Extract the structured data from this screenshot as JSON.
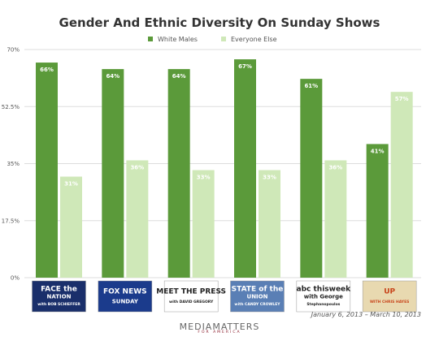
{
  "chart_data": {
    "type": "bar",
    "title": "Gender And Ethnic Diversity On Sunday Shows",
    "categories": [
      "Face the Nation",
      "Fox News Sunday",
      "Meet the Press",
      "State of the Union",
      "This Week",
      "Up with Chris Hayes"
    ],
    "series": [
      {
        "name": "White Males",
        "values": [
          66,
          64,
          64,
          67,
          61,
          41
        ],
        "labels": [
          "66%",
          "64%",
          "64%",
          "67%",
          "61%",
          "41%"
        ],
        "color": "#5b9a3a"
      },
      {
        "name": "Everyone Else",
        "values": [
          31,
          36,
          33,
          33,
          36,
          57
        ],
        "labels": [
          "31%",
          "36%",
          "33%",
          "33%",
          "36%",
          "57%"
        ],
        "color": "#cfe8b8"
      }
    ],
    "ylim": [
      0,
      70
    ],
    "yticks": [
      {
        "value": 0,
        "label": "0%"
      },
      {
        "value": 17.5,
        "label": "17.5%"
      },
      {
        "value": 35,
        "label": "35%"
      },
      {
        "value": 52.5,
        "label": "52.5%"
      },
      {
        "value": 70,
        "label": "70%"
      }
    ],
    "grid": true,
    "legend_position": "top-center"
  },
  "logos": [
    {
      "lines": [
        "FACE the",
        "NATION",
        "with BOB SCHIEFFER"
      ],
      "bg": "#1a2f6b",
      "fg": "#ffffff"
    },
    {
      "lines": [
        "FOX NEWS",
        "SUNDAY"
      ],
      "bg": "#1b3b8c",
      "fg": "#ffffff"
    },
    {
      "lines": [
        "MEET THE PRESS",
        "with DAVID GREGORY"
      ],
      "bg": "#ffffff",
      "fg": "#222222"
    },
    {
      "lines": [
        "STATE of the",
        "UNION",
        "with CANDY CROWLEY"
      ],
      "bg": "#5a7fb5",
      "fg": "#ffffff"
    },
    {
      "lines": [
        "abc thisweek",
        "with George",
        "Stephanopoulos"
      ],
      "bg": "#ffffff",
      "fg": "#222222"
    },
    {
      "lines": [
        "UP",
        "WITH CHRIS HAYES"
      ],
      "bg": "#e8d9b0",
      "fg": "#c8461c"
    }
  ],
  "footer": {
    "date_range": "January 6, 2013 – March 10, 2013",
    "brand": "MEDIAMATTERS",
    "brand_sub": "FOR AMERICA"
  }
}
